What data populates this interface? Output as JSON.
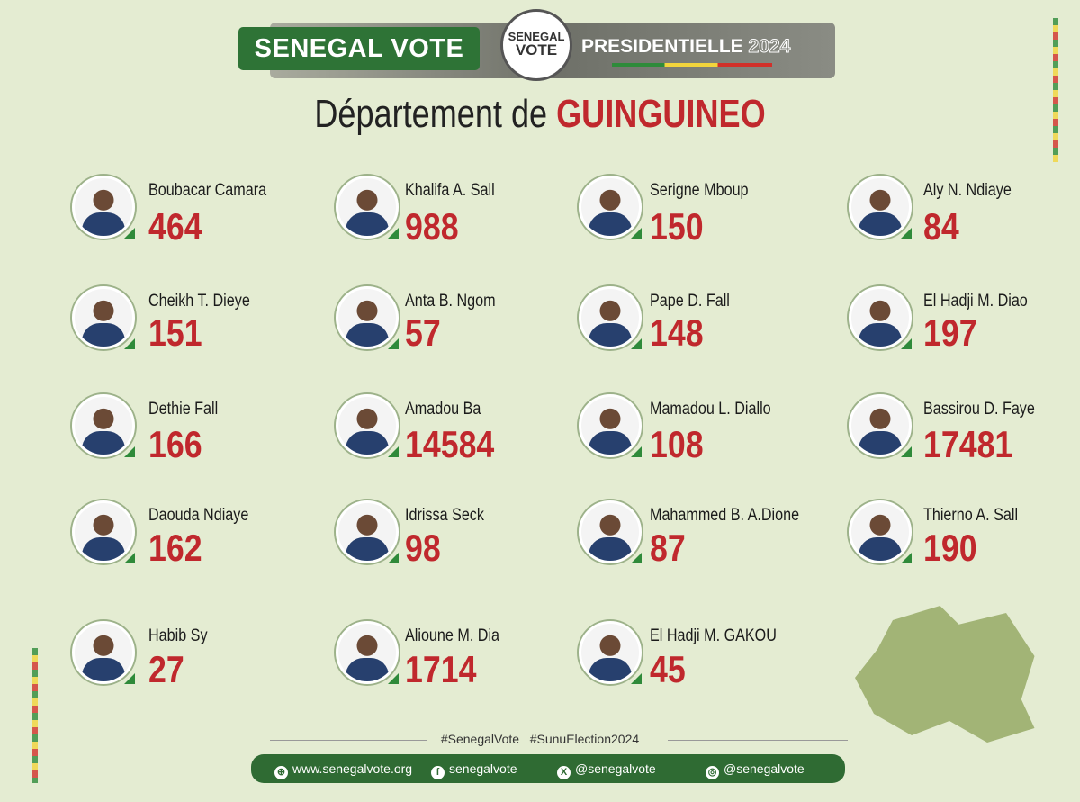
{
  "header": {
    "brand": "SENEGAL VOTE",
    "logo_line1": "SENEGAL",
    "logo_line2": "VOTE",
    "election": "PRESIDENTIELLE",
    "year": "2024",
    "title_prefix": "Département de",
    "title_place": "GUINGUINEO"
  },
  "candidates": [
    {
      "name": "Boubacar Camara",
      "votes": "464"
    },
    {
      "name": "Khalifa A. Sall",
      "votes": "988"
    },
    {
      "name": "Serigne Mboup",
      "votes": "150"
    },
    {
      "name": "Aly N. Ndiaye",
      "votes": "84"
    },
    {
      "name": "Cheikh T. Dieye",
      "votes": "151"
    },
    {
      "name": "Anta B. Ngom",
      "votes": "57"
    },
    {
      "name": "Pape D. Fall",
      "votes": "148"
    },
    {
      "name": "El Hadji M. Diao",
      "votes": "197"
    },
    {
      "name": "Dethie Fall",
      "votes": "166"
    },
    {
      "name": "Amadou Ba",
      "votes": "14584"
    },
    {
      "name": "Mamadou L. Diallo",
      "votes": "108"
    },
    {
      "name": "Bassirou D. Faye",
      "votes": "17481"
    },
    {
      "name": "Daouda Ndiaye",
      "votes": "162"
    },
    {
      "name": "Idrissa Seck",
      "votes": "98"
    },
    {
      "name": "Mahammed B. A.Dione",
      "votes": "87"
    },
    {
      "name": "Thierno A. Sall",
      "votes": "190"
    },
    {
      "name": "Habib Sy",
      "votes": "27"
    },
    {
      "name": "Alioune M. Dia",
      "votes": "1714"
    },
    {
      "name": "El Hadji M. GAKOU",
      "votes": "45"
    }
  ],
  "footer": {
    "hashtags": "#SenegalVote   #SunuElection2024",
    "website": "www.senegalvote.org",
    "facebook": "senegalvote",
    "x": "@senegalvote",
    "instagram": "@senegalvote"
  },
  "colors": {
    "green": "#2e7336",
    "red": "#c0282d",
    "background": "#e4ecd2"
  }
}
